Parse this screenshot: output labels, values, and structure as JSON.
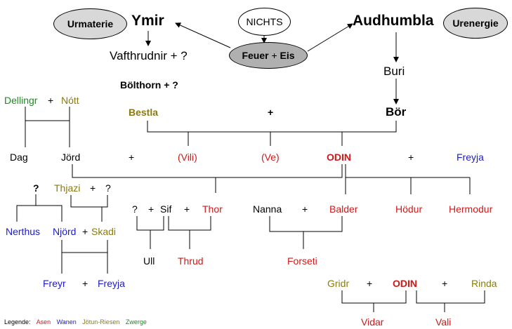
{
  "origins": {
    "urmaterie": "Urmaterie",
    "urenergie": "Urenergie",
    "nichts": "NICHTS",
    "feuer": "Feuer",
    "feuer_plus": "+",
    "eis": "Eis",
    "ymir": "Ymir",
    "audhumbla": "Audhumbla"
  },
  "giants": {
    "vafthrudnir": "Vafthrudnir + ?",
    "bolthorn": "Bölthorn + ?",
    "bestla": "Bestla",
    "bestla_plus": "+",
    "buri": "Buri",
    "bor": "Bör"
  },
  "night": {
    "dellingr": "Dellingr",
    "plus": "+",
    "nott": "Nótt",
    "dag": "Dag",
    "jord": "Jörd"
  },
  "sons": {
    "plus1": "+",
    "vili": "(Vili)",
    "ve": "(Ve)",
    "odin": "ODIN",
    "plus2": "+",
    "freyja": "Freyja"
  },
  "wanen": {
    "q1": "?",
    "thjazi": "Thjazi",
    "thjazi_plus": "+",
    "q2": "?",
    "nerthus": "Nerthus",
    "njord": "Njörd",
    "njord_plus": "+",
    "skadi": "Skadi",
    "freyr": "Freyr",
    "freyr_plus": "+",
    "freyja": "Freyja"
  },
  "thor_family": {
    "q": "?",
    "plus1": "+",
    "sif": "Sif",
    "plus2": "+",
    "thor": "Thor",
    "ull": "Ull",
    "thrud": "Thrud"
  },
  "odin_sons": {
    "nanna": "Nanna",
    "plus": "+",
    "balder": "Balder",
    "hodur": "Hödur",
    "hermodur": "Hermodur",
    "forseti": "Forseti"
  },
  "odin_others": {
    "gridr": "Gridr",
    "plus1": "+",
    "odin": "ODIN",
    "plus2": "+",
    "rinda": "Rinda",
    "vidar": "Vidar",
    "vali": "Vali"
  },
  "legend": {
    "title": "Legende:",
    "asen": "Asen",
    "wanen": "Wanen",
    "jotun": "Jötun-Riesen",
    "zwerge": "Zwerge"
  },
  "colors": {
    "asen": "#d01818",
    "wanen": "#1c1cc8",
    "jotun": "#8a7a12",
    "zwerge": "#1c8a1c"
  }
}
